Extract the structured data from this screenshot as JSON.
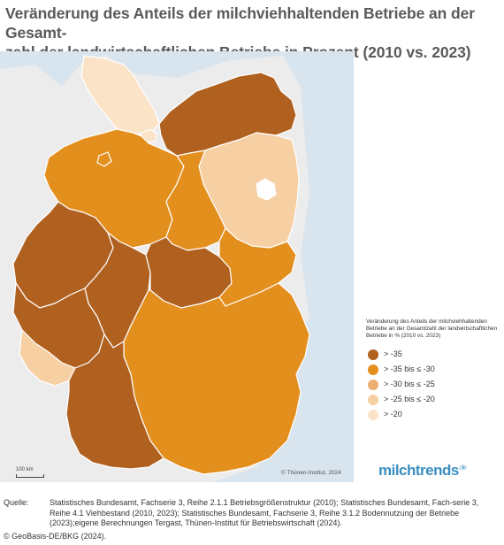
{
  "title": "Veränderung des Anteils der milchviehhaltenden Betriebe an der Gesamt-zahl der landwirtschaftlichen Betriebe in Prozent (2010 vs. 2023)",
  "title_line1": "Veränderung des Anteils der milchviehhaltenden Betriebe an der Gesamt-",
  "title_line2": "zahl der landwirtschaftlichen Betriebe in Prozent (2010 vs. 2023)",
  "colors": {
    "sea": "#d8e4ee",
    "background_land": "#ececec",
    "border": "#ffffff",
    "class_1": "#b0601f",
    "class_2": "#e38f1e",
    "class_3": "#eeae71",
    "class_4": "#f6cfa3",
    "class_5": "#fbe3c8"
  },
  "legend": {
    "title": "Veränderung des Anteils der milchviehhaltenden Betriebe an der Gesamtzahl der landwirtschaftlichen Betriebe in % (2010 vs. 2023)",
    "items": [
      {
        "label": "> -35",
        "color": "#b0601f"
      },
      {
        "label": "> -35 bis ≤ -30",
        "color": "#e38f1e"
      },
      {
        "label": "> -30 bis ≤ -25",
        "color": "#eeae71"
      },
      {
        "label": "> -25 bis ≤ -20",
        "color": "#f6cfa3"
      },
      {
        "label": "> -20",
        "color": "#fbe3c8"
      }
    ]
  },
  "states": [
    {
      "name": "Schleswig-Holstein",
      "class": 5
    },
    {
      "name": "Mecklenburg-Vorpommern",
      "class": 1
    },
    {
      "name": "Hamburg",
      "class": 5
    },
    {
      "name": "Niedersachsen",
      "class": 2
    },
    {
      "name": "Bremen",
      "class": 2
    },
    {
      "name": "Brandenburg",
      "class": 4
    },
    {
      "name": "Berlin",
      "class": 0
    },
    {
      "name": "Sachsen-Anhalt",
      "class": 2
    },
    {
      "name": "Nordrhein-Westfalen",
      "class": 1
    },
    {
      "name": "Hessen",
      "class": 1
    },
    {
      "name": "Thüringen",
      "class": 1
    },
    {
      "name": "Sachsen",
      "class": 2
    },
    {
      "name": "Rheinland-Pfalz",
      "class": 1
    },
    {
      "name": "Saarland",
      "class": 4
    },
    {
      "name": "Bayern",
      "class": 2
    },
    {
      "name": "Baden-Württemberg",
      "class": 1
    }
  ],
  "scale_label": "100 km",
  "map_copyright": "© Thünen-Institut, 2024",
  "brand": {
    "name": "milchtrends",
    "suffix": ".de"
  },
  "source": {
    "label": "Quelle:",
    "text": "Statistisches Bundesamt, Fachserie 3, Reihe 2.1.1 Betriebsgrößenstruktur (2010); Statistisches Bundesamt, Fach-serie 3, Reihe 4.1 Viehbestand (2010, 2023); Statistisches Bundesamt, Fachserie 3, Reihe 3.1.2 Bodennutzung der Betriebe (2023);eigene Berechnungen Tergast, Thünen-Institut für Betriebswirtschaft (2024)."
  },
  "geobasis": "© GeoBasis-DE/BKG (2024)."
}
